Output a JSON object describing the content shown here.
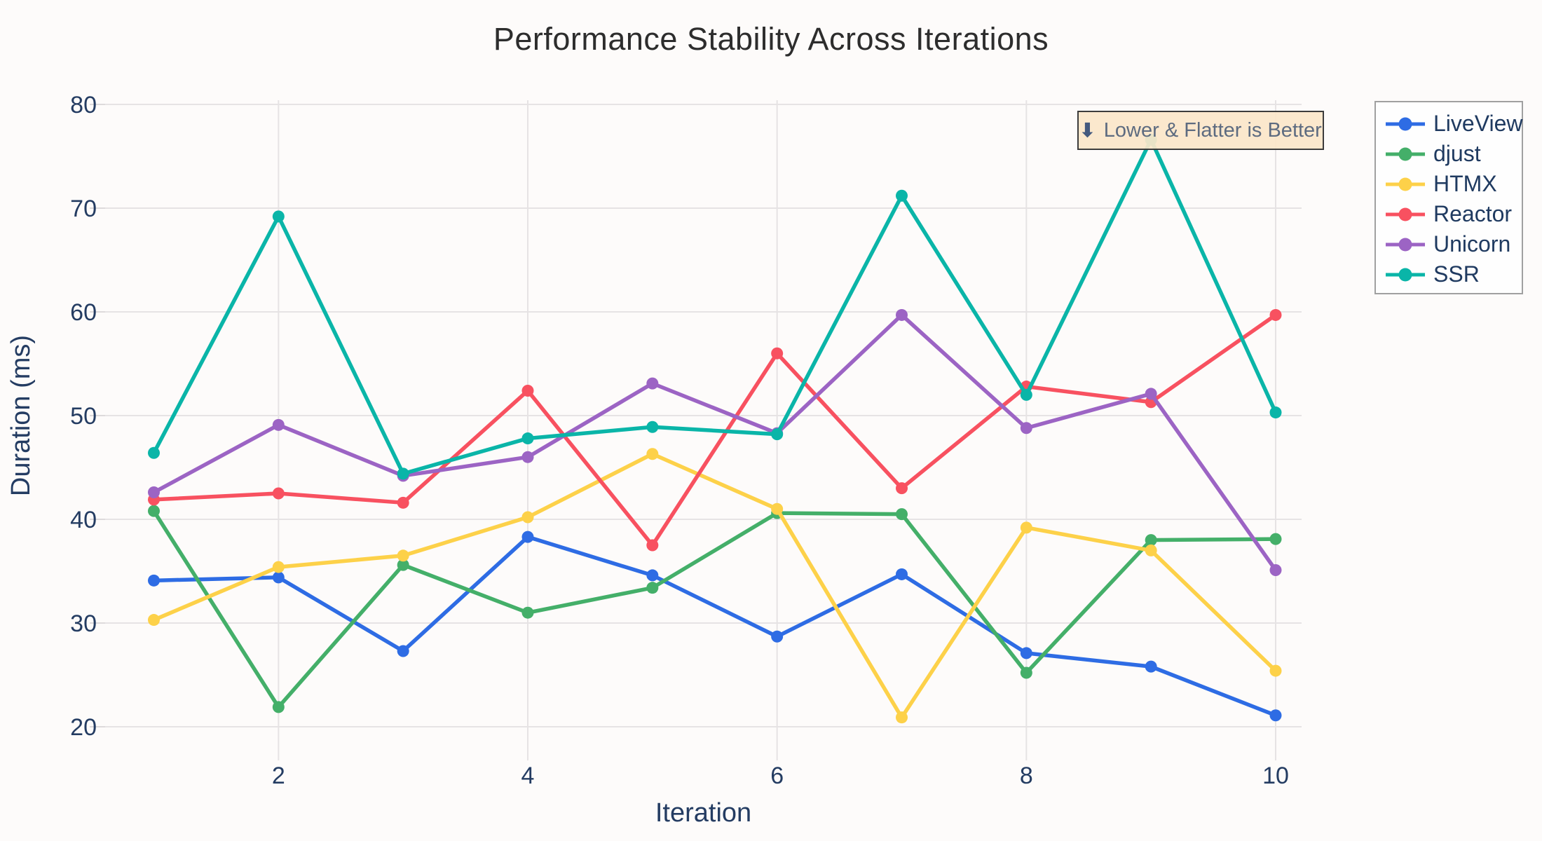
{
  "title": "Performance Stability Across Iterations",
  "annotation": {
    "arrow": "⬇",
    "text": "Lower & Flatter is Better"
  },
  "chart_data": {
    "type": "line",
    "title": "Performance Stability Across Iterations",
    "xlabel": "Iteration",
    "ylabel": "Duration (ms)",
    "x": [
      1,
      2,
      3,
      4,
      5,
      6,
      7,
      8,
      9,
      10
    ],
    "x_ticks": [
      2,
      4,
      6,
      8,
      10
    ],
    "y_ticks": [
      20,
      30,
      40,
      50,
      60,
      70,
      80
    ],
    "xlim": [
      1,
      10
    ],
    "ylim": [
      20,
      80
    ],
    "grid": true,
    "legend_position": "right-top",
    "annotation_text": "⬇ Lower & Flatter is Better",
    "series": [
      {
        "name": "LiveView",
        "color": "#2e6ce4",
        "values": [
          34.1,
          34.4,
          27.3,
          38.3,
          34.6,
          28.7,
          34.7,
          27.1,
          25.8,
          21.1
        ]
      },
      {
        "name": "djust",
        "color": "#44af69",
        "values": [
          40.8,
          21.9,
          35.6,
          31.0,
          33.4,
          40.6,
          40.5,
          25.2,
          38.0,
          38.1
        ]
      },
      {
        "name": "HTMX",
        "color": "#fdd149",
        "values": [
          30.3,
          35.4,
          36.5,
          40.2,
          46.3,
          41.0,
          20.9,
          39.2,
          37.0,
          25.4
        ]
      },
      {
        "name": "Reactor",
        "color": "#f85160",
        "values": [
          41.9,
          42.5,
          41.6,
          52.4,
          37.5,
          56.0,
          43.0,
          52.8,
          51.3,
          59.7
        ]
      },
      {
        "name": "Unicorn",
        "color": "#9c64c4",
        "values": [
          42.6,
          49.1,
          44.2,
          46.0,
          53.1,
          48.3,
          59.7,
          48.8,
          52.1,
          35.1
        ]
      },
      {
        "name": "SSR",
        "color": "#0ab5a8",
        "values": [
          46.4,
          69.2,
          44.4,
          47.8,
          48.9,
          48.2,
          71.2,
          52.0,
          76.6,
          50.3
        ]
      }
    ]
  }
}
